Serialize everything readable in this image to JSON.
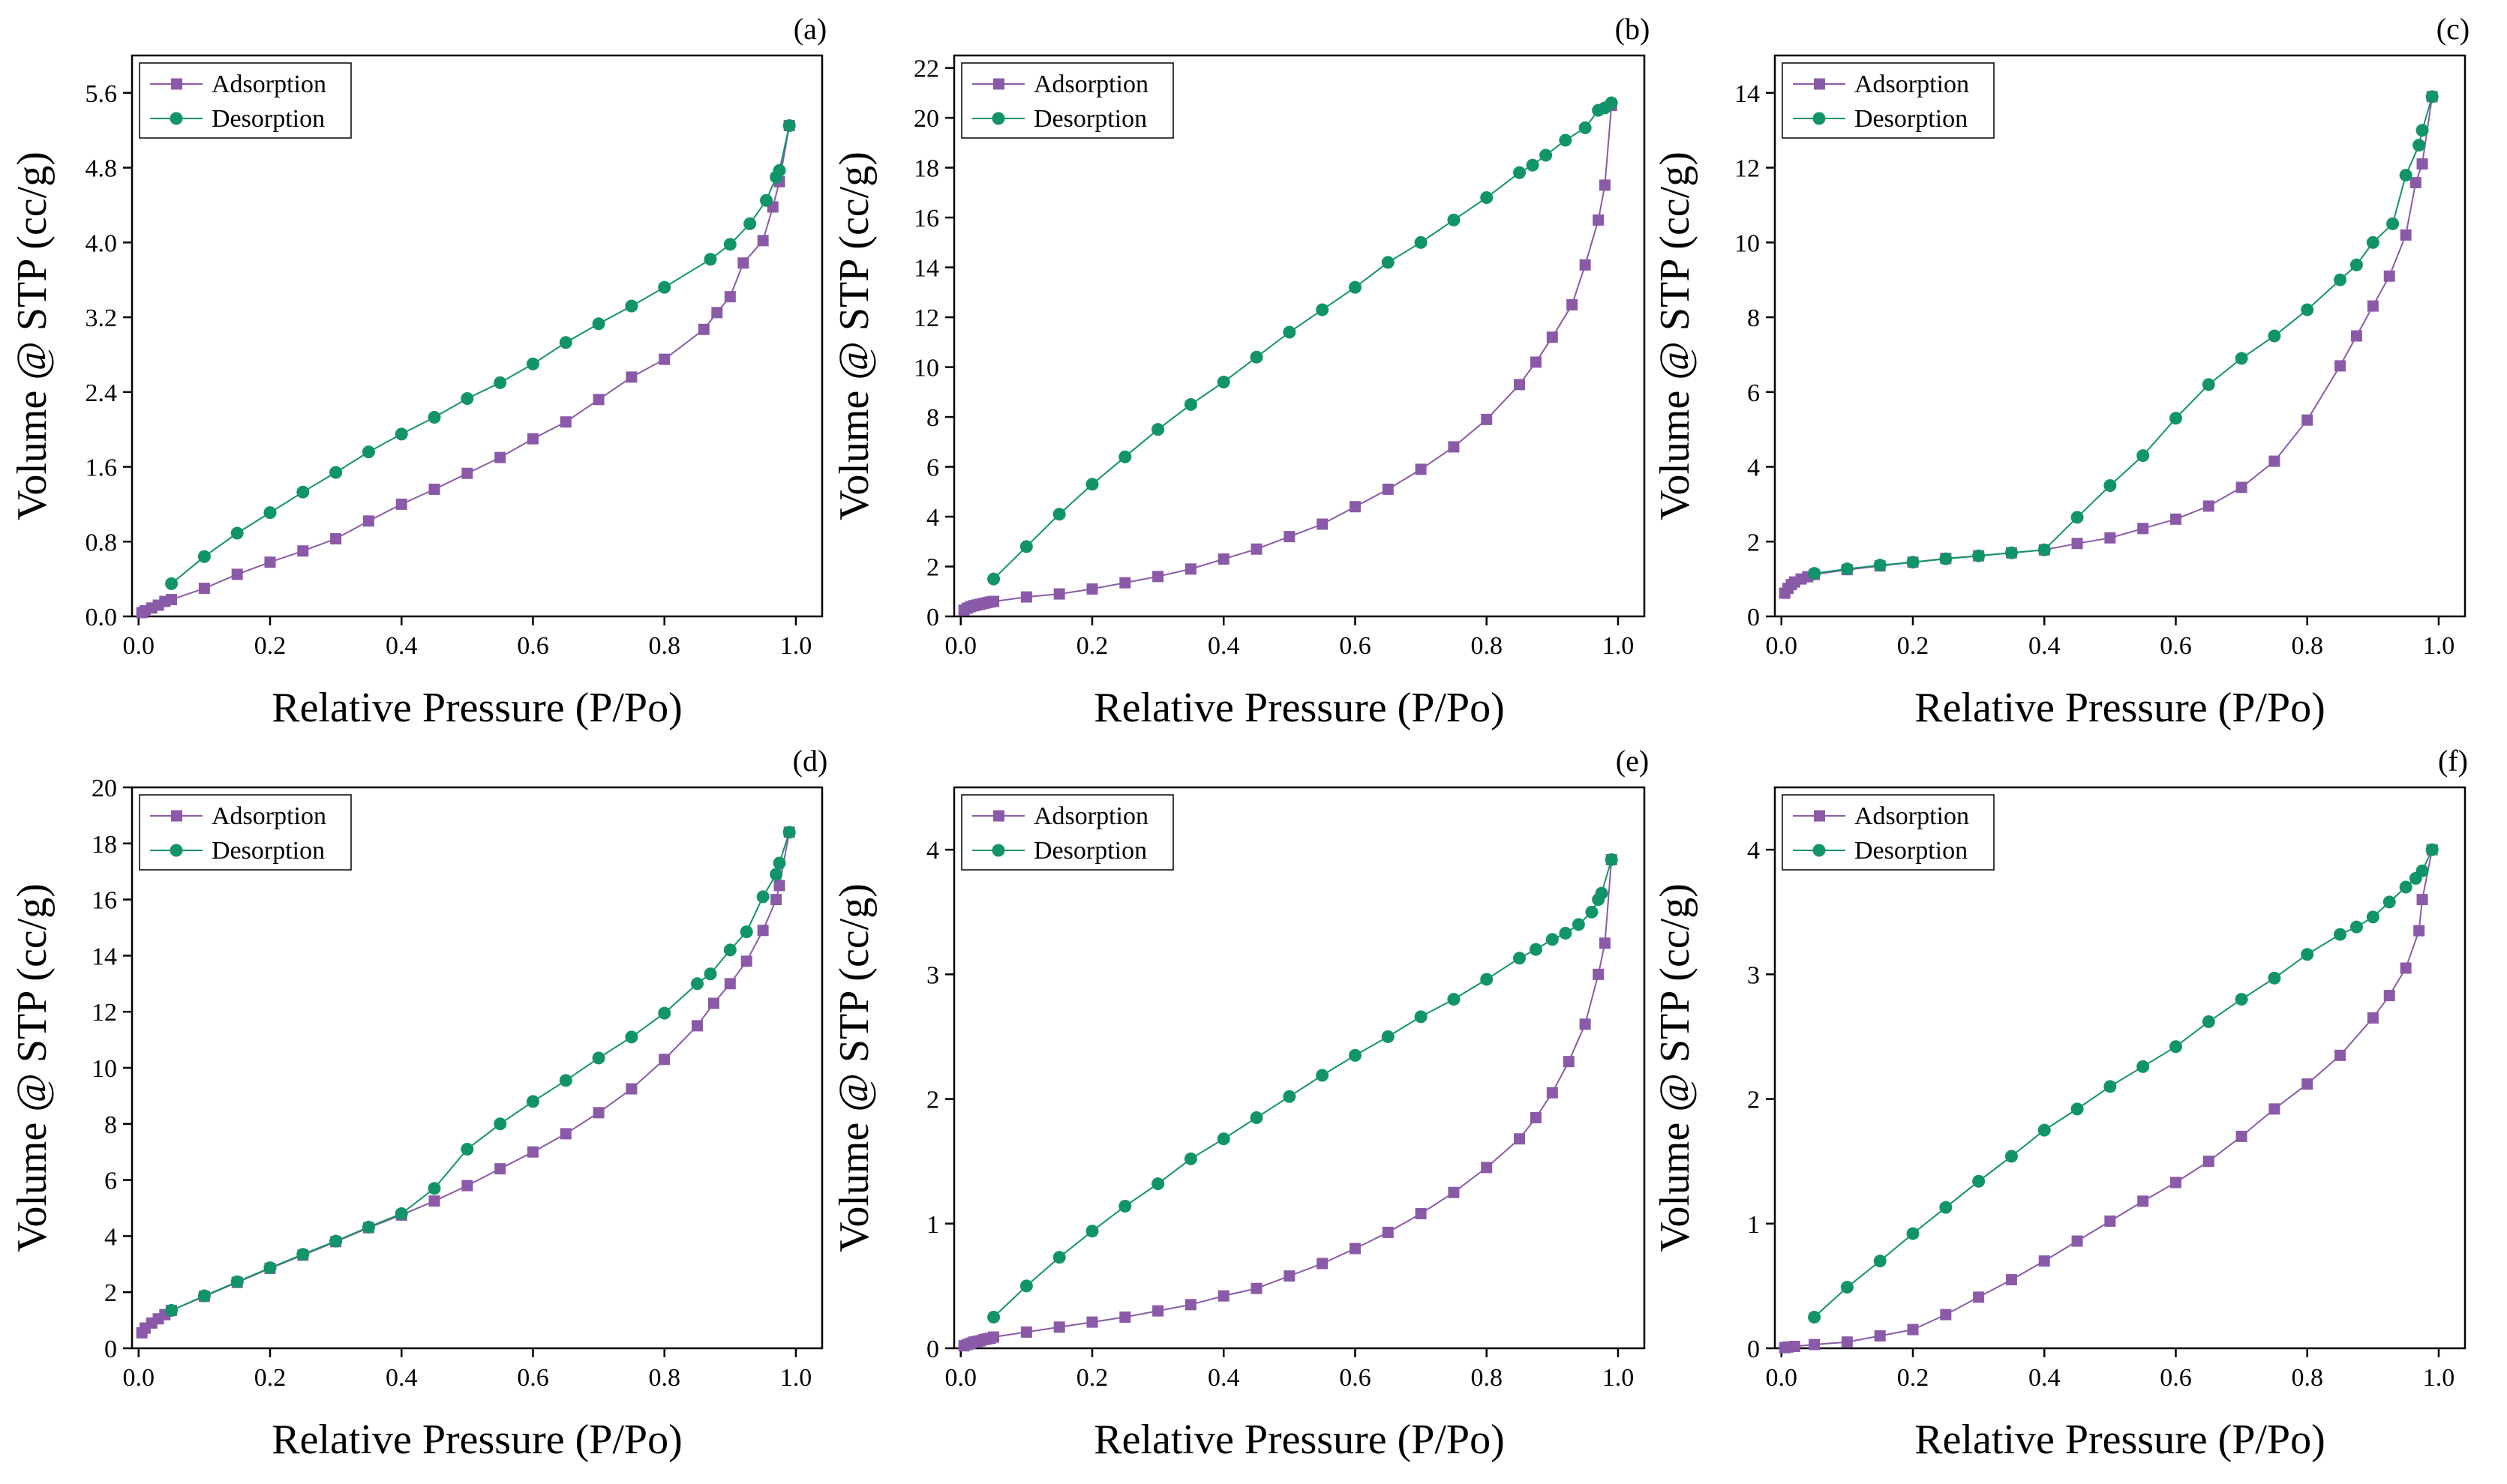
{
  "colors": {
    "adsorption": "#8a5aa8",
    "desorption": "#12946a",
    "axis": "#000000",
    "background": "#ffffff"
  },
  "chart_data": [
    {
      "type": "line",
      "panel": "(a)",
      "xlabel": "Relative Pressure (P/Po)",
      "ylabel": "Volume @ STP (cc/g)",
      "xlim": [
        -0.01,
        1.04
      ],
      "ylim": [
        0,
        6.0
      ],
      "xticks": [
        "0.0",
        "0.2",
        "0.4",
        "0.6",
        "0.8",
        "1.0"
      ],
      "yticks": [
        "0.0",
        "0.8",
        "1.6",
        "2.4",
        "3.2",
        "4.0",
        "4.8",
        "5.6"
      ],
      "legend": {
        "position": "top-left",
        "entries": [
          "Adsorption",
          "Desorption"
        ]
      },
      "series": [
        {
          "name": "Adsorption",
          "marker": "square",
          "x": [
            0.005,
            0.01,
            0.02,
            0.03,
            0.04,
            0.05,
            0.1,
            0.15,
            0.2,
            0.25,
            0.3,
            0.35,
            0.4,
            0.45,
            0.5,
            0.55,
            0.6,
            0.65,
            0.7,
            0.75,
            0.8,
            0.86,
            0.88,
            0.9,
            0.92,
            0.95,
            0.965,
            0.975,
            0.99
          ],
          "y": [
            0.04,
            0.06,
            0.09,
            0.12,
            0.16,
            0.18,
            0.3,
            0.45,
            0.58,
            0.7,
            0.83,
            1.02,
            1.2,
            1.36,
            1.53,
            1.7,
            1.9,
            2.08,
            2.32,
            2.56,
            2.75,
            3.07,
            3.25,
            3.42,
            3.78,
            4.02,
            4.38,
            4.65,
            5.25
          ]
        },
        {
          "name": "Desorption",
          "marker": "circle",
          "x": [
            0.05,
            0.1,
            0.15,
            0.2,
            0.25,
            0.3,
            0.35,
            0.4,
            0.45,
            0.5,
            0.55,
            0.6,
            0.65,
            0.7,
            0.75,
            0.8,
            0.87,
            0.9,
            0.93,
            0.955,
            0.97,
            0.975,
            0.99
          ],
          "y": [
            0.35,
            0.64,
            0.89,
            1.11,
            1.33,
            1.54,
            1.76,
            1.95,
            2.13,
            2.33,
            2.5,
            2.7,
            2.93,
            3.13,
            3.32,
            3.52,
            3.82,
            3.98,
            4.2,
            4.45,
            4.7,
            4.77,
            5.25
          ]
        }
      ]
    },
    {
      "type": "line",
      "panel": "(b)",
      "xlabel": "Relative Pressure (P/Po)",
      "ylabel": "Volume @ STP (cc/g)",
      "xlim": [
        -0.01,
        1.04
      ],
      "ylim": [
        0,
        22.5
      ],
      "xticks": [
        "0.0",
        "0.2",
        "0.4",
        "0.6",
        "0.8",
        "1.0"
      ],
      "yticks": [
        "0",
        "2",
        "4",
        "6",
        "8",
        "10",
        "12",
        "14",
        "16",
        "18",
        "20",
        "22"
      ],
      "legend": {
        "position": "top-left",
        "entries": [
          "Adsorption",
          "Desorption"
        ]
      },
      "series": [
        {
          "name": "Adsorption",
          "marker": "square",
          "x": [
            0.005,
            0.01,
            0.015,
            0.02,
            0.025,
            0.03,
            0.035,
            0.04,
            0.045,
            0.05,
            0.1,
            0.15,
            0.2,
            0.25,
            0.3,
            0.35,
            0.4,
            0.45,
            0.5,
            0.55,
            0.6,
            0.65,
            0.7,
            0.75,
            0.8,
            0.85,
            0.875,
            0.9,
            0.93,
            0.95,
            0.97,
            0.98,
            0.99
          ],
          "y": [
            0.25,
            0.33,
            0.39,
            0.43,
            0.46,
            0.49,
            0.52,
            0.55,
            0.58,
            0.6,
            0.78,
            0.9,
            1.1,
            1.35,
            1.6,
            1.9,
            2.3,
            2.7,
            3.2,
            3.7,
            4.4,
            5.1,
            5.9,
            6.8,
            7.9,
            9.3,
            10.2,
            11.2,
            12.5,
            14.1,
            15.9,
            17.3,
            20.5
          ]
        },
        {
          "name": "Desorption",
          "marker": "circle",
          "x": [
            0.05,
            0.1,
            0.15,
            0.2,
            0.25,
            0.3,
            0.35,
            0.4,
            0.45,
            0.5,
            0.55,
            0.6,
            0.65,
            0.7,
            0.75,
            0.8,
            0.85,
            0.87,
            0.89,
            0.92,
            0.95,
            0.97,
            0.98,
            0.99
          ],
          "y": [
            1.5,
            2.8,
            4.1,
            5.3,
            6.4,
            7.5,
            8.5,
            9.4,
            10.4,
            11.4,
            12.3,
            13.2,
            14.2,
            15.0,
            15.9,
            16.8,
            17.8,
            18.1,
            18.5,
            19.1,
            19.6,
            20.3,
            20.4,
            20.6
          ]
        }
      ]
    },
    {
      "type": "line",
      "panel": "(c)",
      "xlabel": "Relative Pressure (P/Po)",
      "ylabel": "Volume @ STP (cc/g)",
      "xlim": [
        -0.01,
        1.04
      ],
      "ylim": [
        0,
        15
      ],
      "xticks": [
        "0.0",
        "0.2",
        "0.4",
        "0.6",
        "0.8",
        "1.0"
      ],
      "yticks": [
        "0",
        "2",
        "4",
        "6",
        "8",
        "10",
        "12",
        "14"
      ],
      "legend": {
        "position": "top-left",
        "entries": [
          "Adsorption",
          "Desorption"
        ]
      },
      "series": [
        {
          "name": "Adsorption",
          "marker": "square",
          "x": [
            0.005,
            0.01,
            0.015,
            0.02,
            0.03,
            0.04,
            0.05,
            0.1,
            0.15,
            0.2,
            0.25,
            0.3,
            0.35,
            0.4,
            0.45,
            0.5,
            0.55,
            0.6,
            0.65,
            0.7,
            0.75,
            0.8,
            0.85,
            0.875,
            0.9,
            0.925,
            0.95,
            0.965,
            0.975,
            0.99
          ],
          "y": [
            0.62,
            0.75,
            0.85,
            0.92,
            1.0,
            1.06,
            1.12,
            1.25,
            1.35,
            1.45,
            1.55,
            1.62,
            1.7,
            1.78,
            1.95,
            2.1,
            2.35,
            2.6,
            2.95,
            3.45,
            4.15,
            5.25,
            6.7,
            7.5,
            8.3,
            9.1,
            10.2,
            11.6,
            12.1,
            13.9
          ]
        },
        {
          "name": "Desorption",
          "marker": "circle",
          "x": [
            0.05,
            0.1,
            0.15,
            0.2,
            0.25,
            0.3,
            0.35,
            0.4,
            0.45,
            0.5,
            0.55,
            0.6,
            0.65,
            0.7,
            0.75,
            0.8,
            0.85,
            0.875,
            0.9,
            0.93,
            0.95,
            0.97,
            0.975,
            0.99
          ],
          "y": [
            1.15,
            1.27,
            1.37,
            1.45,
            1.54,
            1.62,
            1.7,
            1.78,
            2.65,
            3.5,
            4.3,
            5.3,
            6.2,
            6.9,
            7.5,
            8.2,
            9.0,
            9.4,
            10.0,
            10.5,
            11.8,
            12.6,
            13.0,
            13.9
          ]
        }
      ]
    },
    {
      "type": "line",
      "panel": "(d)",
      "xlabel": "Relative Pressure (P/Po)",
      "ylabel": "Volume @ STP (cc/g)",
      "xlim": [
        -0.01,
        1.04
      ],
      "ylim": [
        0,
        20
      ],
      "xticks": [
        "0.0",
        "0.2",
        "0.4",
        "0.6",
        "0.8",
        "1.0"
      ],
      "yticks": [
        "0",
        "2",
        "4",
        "6",
        "8",
        "10",
        "12",
        "14",
        "16",
        "18",
        "20"
      ],
      "legend": {
        "position": "top-left",
        "entries": [
          "Adsorption",
          "Desorption"
        ]
      },
      "series": [
        {
          "name": "Adsorption",
          "marker": "square",
          "x": [
            0.005,
            0.01,
            0.02,
            0.03,
            0.04,
            0.05,
            0.1,
            0.15,
            0.2,
            0.25,
            0.3,
            0.35,
            0.4,
            0.45,
            0.5,
            0.55,
            0.6,
            0.65,
            0.7,
            0.75,
            0.8,
            0.85,
            0.875,
            0.9,
            0.925,
            0.95,
            0.97,
            0.975,
            0.99
          ],
          "y": [
            0.55,
            0.72,
            0.9,
            1.05,
            1.2,
            1.35,
            1.85,
            2.35,
            2.85,
            3.32,
            3.8,
            4.3,
            4.75,
            5.25,
            5.8,
            6.4,
            7.0,
            7.65,
            8.4,
            9.25,
            10.3,
            11.5,
            12.3,
            13.0,
            13.8,
            14.9,
            16.0,
            16.5,
            18.4
          ]
        },
        {
          "name": "Desorption",
          "marker": "circle",
          "x": [
            0.05,
            0.1,
            0.15,
            0.2,
            0.25,
            0.3,
            0.35,
            0.4,
            0.45,
            0.5,
            0.55,
            0.6,
            0.65,
            0.7,
            0.75,
            0.8,
            0.85,
            0.87,
            0.9,
            0.925,
            0.95,
            0.97,
            0.975,
            0.99
          ],
          "y": [
            1.35,
            1.87,
            2.37,
            2.87,
            3.35,
            3.82,
            4.32,
            4.8,
            5.7,
            7.1,
            8.0,
            8.8,
            9.55,
            10.35,
            11.1,
            11.95,
            13.0,
            13.35,
            14.2,
            14.85,
            16.1,
            16.9,
            17.3,
            18.4
          ]
        }
      ]
    },
    {
      "type": "line",
      "panel": "(e)",
      "xlabel": "Relative Pressure (P/Po)",
      "ylabel": "Volume @ STP (cc/g)",
      "xlim": [
        -0.01,
        1.04
      ],
      "ylim": [
        0,
        4.5
      ],
      "xticks": [
        "0.0",
        "0.2",
        "0.4",
        "0.6",
        "0.8",
        "1.0"
      ],
      "yticks": [
        "0",
        "1",
        "2",
        "3",
        "4"
      ],
      "legend": {
        "position": "top-left",
        "entries": [
          "Adsorption",
          "Desorption"
        ]
      },
      "series": [
        {
          "name": "Adsorption",
          "marker": "square",
          "x": [
            0.005,
            0.01,
            0.015,
            0.02,
            0.025,
            0.03,
            0.035,
            0.04,
            0.045,
            0.05,
            0.1,
            0.15,
            0.2,
            0.25,
            0.3,
            0.35,
            0.4,
            0.45,
            0.5,
            0.55,
            0.6,
            0.65,
            0.7,
            0.75,
            0.8,
            0.85,
            0.875,
            0.9,
            0.925,
            0.95,
            0.97,
            0.98,
            0.99
          ],
          "y": [
            0.02,
            0.03,
            0.04,
            0.05,
            0.055,
            0.06,
            0.07,
            0.075,
            0.08,
            0.09,
            0.13,
            0.17,
            0.21,
            0.25,
            0.3,
            0.35,
            0.42,
            0.48,
            0.58,
            0.68,
            0.8,
            0.93,
            1.08,
            1.25,
            1.45,
            1.68,
            1.85,
            2.05,
            2.3,
            2.6,
            3.0,
            3.25,
            3.92
          ]
        },
        {
          "name": "Desorption",
          "marker": "circle",
          "x": [
            0.05,
            0.1,
            0.15,
            0.2,
            0.25,
            0.3,
            0.35,
            0.4,
            0.45,
            0.5,
            0.55,
            0.6,
            0.65,
            0.7,
            0.75,
            0.8,
            0.85,
            0.875,
            0.9,
            0.92,
            0.94,
            0.96,
            0.97,
            0.975,
            0.99
          ],
          "y": [
            0.25,
            0.5,
            0.73,
            0.94,
            1.14,
            1.32,
            1.52,
            1.68,
            1.85,
            2.02,
            2.19,
            2.35,
            2.5,
            2.66,
            2.8,
            2.96,
            3.13,
            3.2,
            3.28,
            3.33,
            3.4,
            3.5,
            3.6,
            3.65,
            3.92
          ]
        }
      ]
    },
    {
      "type": "line",
      "panel": "(f)",
      "xlabel": "Relative Pressure (P/Po)",
      "ylabel": "Volume @ STP (cc/g)",
      "xlim": [
        -0.01,
        1.04
      ],
      "ylim": [
        0,
        4.5
      ],
      "xticks": [
        "0.0",
        "0.2",
        "0.4",
        "0.6",
        "0.8",
        "1.0"
      ],
      "yticks": [
        "0",
        "1",
        "2",
        "3",
        "4"
      ],
      "legend": {
        "position": "top-left",
        "entries": [
          "Adsorption",
          "Desorption"
        ]
      },
      "series": [
        {
          "name": "Adsorption",
          "marker": "square",
          "x": [
            0.005,
            0.01,
            0.02,
            0.05,
            0.1,
            0.15,
            0.2,
            0.25,
            0.3,
            0.35,
            0.4,
            0.45,
            0.5,
            0.55,
            0.6,
            0.65,
            0.7,
            0.75,
            0.8,
            0.85,
            0.9,
            0.925,
            0.95,
            0.97,
            0.975,
            0.99
          ],
          "y": [
            0.005,
            0.01,
            0.015,
            0.03,
            0.05,
            0.1,
            0.15,
            0.27,
            0.41,
            0.55,
            0.7,
            0.86,
            1.02,
            1.18,
            1.33,
            1.5,
            1.7,
            1.92,
            2.12,
            2.35,
            2.65,
            2.83,
            3.05,
            3.35,
            3.6,
            4.0
          ]
        },
        {
          "name": "Desorption",
          "marker": "circle",
          "x": [
            0.05,
            0.1,
            0.15,
            0.2,
            0.25,
            0.3,
            0.35,
            0.4,
            0.45,
            0.5,
            0.55,
            0.6,
            0.65,
            0.7,
            0.75,
            0.8,
            0.85,
            0.875,
            0.9,
            0.925,
            0.95,
            0.965,
            0.975,
            0.99
          ],
          "y": [
            0.25,
            0.49,
            0.7,
            0.92,
            1.13,
            1.34,
            1.54,
            1.75,
            1.92,
            2.1,
            2.26,
            2.42,
            2.62,
            2.8,
            2.97,
            3.16,
            3.32,
            3.38,
            3.46,
            3.58,
            3.7,
            3.77,
            3.83,
            4.0
          ]
        }
      ]
    }
  ]
}
